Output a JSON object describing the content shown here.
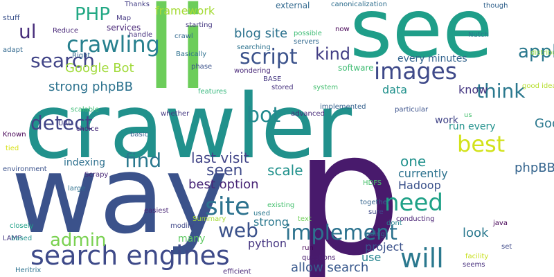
{
  "words": [
    {
      "text": "crawler",
      "color": "#21918c"
    },
    {
      "text": "p",
      "color": "#481a6c"
    },
    {
      "text": "way",
      "color": "#3b528b"
    },
    {
      "text": "see",
      "color": "#1f9e89"
    },
    {
      "text": "li",
      "color": "#6ccd5a"
    },
    {
      "text": "search engines",
      "color": "#3e4a89"
    },
    {
      "text": "site",
      "color": "#2c728e"
    },
    {
      "text": "implement",
      "color": "#2c728e"
    },
    {
      "text": "crawling",
      "color": "#27808e"
    },
    {
      "text": "images",
      "color": "#3e4989"
    },
    {
      "text": "need",
      "color": "#1fa187"
    },
    {
      "text": "will",
      "color": "#2a788e"
    },
    {
      "text": "best",
      "color": "#d2e21b"
    },
    {
      "text": "find",
      "color": "#2a788e"
    },
    {
      "text": "web",
      "color": "#3b528b"
    },
    {
      "text": "bot",
      "color": "#23898e"
    },
    {
      "text": "PHP",
      "color": "#22a884"
    },
    {
      "text": "admin",
      "color": "#7ad151"
    },
    {
      "text": "script",
      "color": "#3b528b"
    },
    {
      "text": "detect",
      "color": "#414487"
    },
    {
      "text": "search",
      "color": "#414487"
    },
    {
      "text": "ul",
      "color": "#472d7b"
    },
    {
      "text": "think",
      "color": "#2a788e"
    },
    {
      "text": "application",
      "color": "#2a788e"
    },
    {
      "text": "kind",
      "color": "#433e85"
    },
    {
      "text": "Google Bot",
      "color": "#a0da39"
    },
    {
      "text": "blog site",
      "color": "#2c728e"
    },
    {
      "text": "seen",
      "color": "#3e4989"
    },
    {
      "text": "last visit",
      "color": "#414487"
    },
    {
      "text": "scale",
      "color": "#21918c"
    },
    {
      "text": "one",
      "color": "#21918c"
    },
    {
      "text": "strong phpBB",
      "color": "#2c728e"
    },
    {
      "text": "Google Analytic",
      "color": "#2a788e"
    },
    {
      "text": "phpBB strong",
      "color": "#33638d"
    },
    {
      "text": "best option",
      "color": "#482576"
    },
    {
      "text": "allow search",
      "color": "#38588c"
    },
    {
      "text": "python",
      "color": "#453581"
    },
    {
      "text": "strong",
      "color": "#2a788e"
    },
    {
      "text": "project",
      "color": "#3b528b"
    },
    {
      "text": "look",
      "color": "#2a788e"
    },
    {
      "text": "use",
      "color": "#25848e"
    },
    {
      "text": "Hadoop",
      "color": "#3b528b"
    },
    {
      "text": "currently",
      "color": "#2c728e"
    },
    {
      "text": "data",
      "color": "#21918c"
    },
    {
      "text": "know",
      "color": "#453781"
    },
    {
      "text": "every minutes",
      "color": "#33638d"
    },
    {
      "text": "framework",
      "color": "#a5db36"
    },
    {
      "text": "indexing",
      "color": "#2d708e"
    },
    {
      "text": "run every",
      "color": "#21918c"
    },
    {
      "text": "work",
      "color": "#414487"
    },
    {
      "text": "many",
      "color": "#5ec962"
    },
    {
      "text": "software",
      "color": "#3fbc73"
    },
    {
      "text": "external",
      "color": "#31688e"
    },
    {
      "text": "services",
      "color": "#482677"
    },
    {
      "text": "stuff",
      "color": "#3b528b"
    },
    {
      "text": "Reduce",
      "color": "#482878"
    },
    {
      "text": "Right",
      "color": "#31688e"
    },
    {
      "text": "adapt",
      "color": "#31688e"
    },
    {
      "text": "Thanks",
      "color": "#433e85"
    },
    {
      "text": "Map",
      "color": "#453882"
    },
    {
      "text": "handle",
      "color": "#46327e"
    },
    {
      "text": "crawl",
      "color": "#31688e"
    },
    {
      "text": "Basically",
      "color": "#2d708e"
    },
    {
      "text": "phase",
      "color": "#3b528b"
    },
    {
      "text": "starting",
      "color": "#453882"
    },
    {
      "text": "searching",
      "color": "#2c728e"
    },
    {
      "text": "servers",
      "color": "#31688e"
    },
    {
      "text": "wondering",
      "color": "#482878"
    },
    {
      "text": "BASE",
      "color": "#453882"
    },
    {
      "text": "stored",
      "color": "#46327e"
    },
    {
      "text": "possible",
      "color": "#3dbc74"
    },
    {
      "text": "canonicalization",
      "color": "#2e6e8e"
    },
    {
      "text": "now",
      "color": "#440154"
    },
    {
      "text": "Nutch",
      "color": "#2a788e"
    },
    {
      "text": "though",
      "color": "#33638d"
    },
    {
      "text": "distributed",
      "color": "#8fd744"
    },
    {
      "text": "good idea",
      "color": "#b5de2b"
    },
    {
      "text": "features",
      "color": "#32b67a"
    },
    {
      "text": "system",
      "color": "#44bf70"
    },
    {
      "text": "implemented",
      "color": "#35608d"
    },
    {
      "text": "us",
      "color": "#46c06f"
    },
    {
      "text": "particular",
      "color": "#3b528b"
    },
    {
      "text": "advanced",
      "color": "#472a7a"
    },
    {
      "text": "Known",
      "color": "#440154"
    },
    {
      "text": "tied",
      "color": "#d8e219"
    },
    {
      "text": "URL",
      "color": "#433e85"
    },
    {
      "text": "scalable",
      "color": "#3dbc74"
    },
    {
      "text": "choice",
      "color": "#472d7b"
    },
    {
      "text": "basic",
      "color": "#35608d"
    },
    {
      "text": "whether",
      "color": "#453882"
    },
    {
      "text": "Scrapy",
      "color": "#482878"
    },
    {
      "text": "large",
      "color": "#2d708e"
    },
    {
      "text": "environment",
      "color": "#3b528b"
    },
    {
      "text": "LAMP",
      "color": "#453882"
    },
    {
      "text": "closely",
      "color": "#1fa187"
    },
    {
      "text": "based",
      "color": "#21918c"
    },
    {
      "text": "Heritrix",
      "color": "#2c728e"
    },
    {
      "text": "easiest",
      "color": "#482475"
    },
    {
      "text": "modify",
      "color": "#3f4788"
    },
    {
      "text": "Summary",
      "color": "#a5db36"
    },
    {
      "text": "used",
      "color": "#2a788e"
    },
    {
      "text": "existing",
      "color": "#46c06f"
    },
    {
      "text": "text",
      "color": "#6ece58"
    },
    {
      "text": "dont",
      "color": "#25848e"
    },
    {
      "text": "HDFS",
      "color": "#4ac16d"
    },
    {
      "text": "together",
      "color": "#33638d"
    },
    {
      "text": "sure",
      "color": "#3e4989"
    },
    {
      "text": "going",
      "color": "#2e6e8e"
    },
    {
      "text": "conducting",
      "color": "#482173"
    },
    {
      "text": "run",
      "color": "#440154"
    },
    {
      "text": "questions",
      "color": "#481d6f"
    },
    {
      "text": "efficient",
      "color": "#482878"
    },
    {
      "text": "java",
      "color": "#440154"
    },
    {
      "text": "facility",
      "color": "#c8e020"
    },
    {
      "text": "seems",
      "color": "#472f7d"
    },
    {
      "text": "set",
      "color": "#3e4989"
    }
  ]
}
